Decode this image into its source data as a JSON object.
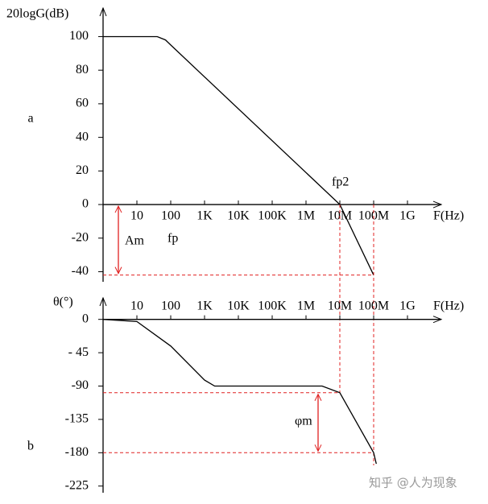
{
  "chart_data": [
    {
      "type": "line",
      "panel_label": "a",
      "y_label": "20logG(dB)",
      "x_label": "F(Hz)",
      "log_x": true,
      "x": [
        1,
        40,
        70,
        100,
        10000000,
        100000000
      ],
      "series": [
        {
          "color": "#000000",
          "values": [
            100,
            100,
            98,
            95,
            0,
            -42
          ]
        }
      ],
      "xlim": [
        1,
        10000000000
      ],
      "ylim": [
        -46,
        117
      ],
      "xticks": [
        10,
        100,
        {
          "value": 1000,
          "label": "1K"
        },
        {
          "value": 10000,
          "label": "10K"
        },
        {
          "value": 100000,
          "label": "100K"
        },
        {
          "value": 1000000,
          "label": "1M"
        },
        {
          "value": 10000000,
          "label": "10M"
        },
        {
          "value": 100000000,
          "label": "100M"
        },
        {
          "value": 1000000000,
          "label": "1G"
        }
      ],
      "yticks": [
        -40,
        -20,
        0,
        20,
        40,
        60,
        80,
        100
      ],
      "annotations": [
        "Am",
        "fp",
        "fp2"
      ]
    },
    {
      "type": "line",
      "panel_label": "b",
      "y_label": "θ(°)",
      "x_label": "F(Hz)",
      "log_x": true,
      "x": [
        1,
        10,
        100,
        1000,
        2000,
        3000000,
        10000000,
        100000000,
        120000000
      ],
      "series": [
        {
          "color": "#000000",
          "values": [
            0,
            -3,
            -36,
            -82,
            -90,
            -90,
            -99,
            -180,
            -195
          ]
        }
      ],
      "xlim": [
        1,
        10000000000
      ],
      "ylim": [
        -234,
        29
      ],
      "xticks": [
        10,
        100,
        {
          "value": 1000,
          "label": "1K"
        },
        {
          "value": 10000,
          "label": "10K"
        },
        {
          "value": 100000,
          "label": "100K"
        },
        {
          "value": 1000000,
          "label": "1M"
        },
        {
          "value": 10000000,
          "label": "10M"
        },
        {
          "value": 100000000,
          "label": "100M"
        },
        {
          "value": 1000000000,
          "label": "1G"
        }
      ],
      "yticks": [
        -225,
        -180,
        -135,
        -90,
        {
          "value": -45,
          "label": "- 45"
        },
        0
      ],
      "annotations": [
        "φm"
      ]
    }
  ],
  "watermark": "知乎 @人为现象"
}
